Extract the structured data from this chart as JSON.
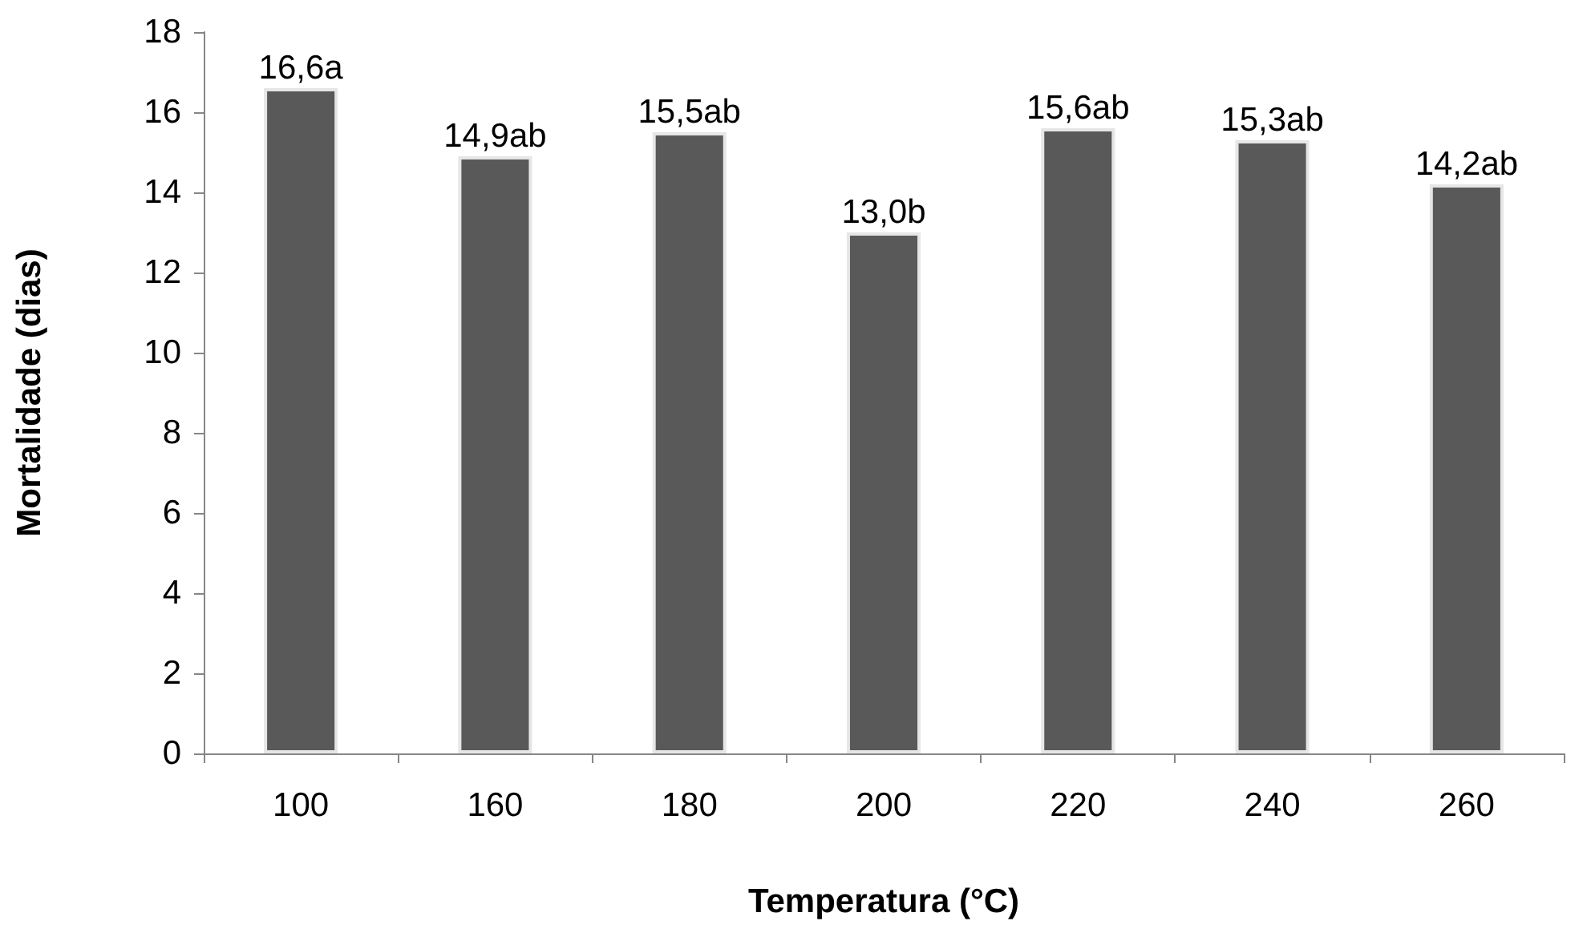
{
  "chart_data": {
    "type": "bar",
    "xlabel": "Temperatura (°C)",
    "ylabel": "Mortalidade (dias)",
    "categories": [
      "100",
      "160",
      "180",
      "200",
      "220",
      "240",
      "260"
    ],
    "values": [
      16.6,
      14.9,
      15.5,
      13.0,
      15.6,
      15.3,
      14.2
    ],
    "value_labels": [
      "16,6a",
      "14,9ab",
      "15,5ab",
      "13,0b",
      "15,6ab",
      "15,3ab",
      "14,2ab"
    ],
    "color": "#595959",
    "ylim": [
      0,
      18
    ],
    "yticks": [
      0,
      2,
      4,
      6,
      8,
      10,
      12,
      14,
      16,
      18
    ],
    "grid": false
  }
}
